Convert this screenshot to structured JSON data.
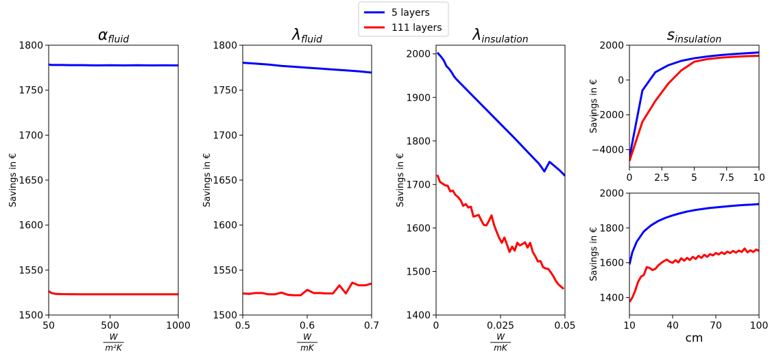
{
  "legend": {
    "placement": "top-center",
    "entries": [
      {
        "label": "5 layers",
        "color": "#0000ff"
      },
      {
        "label": "111 layers",
        "color": "#ff0000"
      }
    ]
  },
  "chart_data": [
    {
      "id": "alpha",
      "type": "line",
      "title_base": "α",
      "title_sub": "fluid",
      "ylabel": "Savings in €",
      "xlabel_num": "W",
      "xlabel_den": "m²K",
      "xlim": [
        50,
        1000
      ],
      "ylim": [
        1500,
        1800
      ],
      "xticks": [
        50,
        500,
        1000
      ],
      "yticks": [
        1500,
        1550,
        1600,
        1650,
        1700,
        1750,
        1800
      ],
      "series": [
        {
          "name": "5 layers",
          "color": "#0000ff",
          "x": [
            50,
            70,
            100,
            150,
            200,
            300,
            400,
            500,
            600,
            700,
            800,
            900,
            1000
          ],
          "y": [
            1778.5,
            1778,
            1778,
            1778,
            1777.8,
            1777.8,
            1777.5,
            1777.7,
            1777.5,
            1777.7,
            1777.5,
            1777.6,
            1777.5
          ]
        },
        {
          "name": "111 layers",
          "color": "#ff0000",
          "x": [
            50,
            70,
            100,
            150,
            200,
            300,
            400,
            500,
            600,
            700,
            800,
            900,
            1000
          ],
          "y": [
            1526.5,
            1524.5,
            1523.5,
            1523.2,
            1523.1,
            1523,
            1523,
            1523,
            1523,
            1523,
            1523,
            1523,
            1523
          ]
        }
      ]
    },
    {
      "id": "lambda_fluid",
      "type": "line",
      "title_base": "λ",
      "title_sub": "fluid",
      "ylabel": "Savings in €",
      "xlabel_num": "W",
      "xlabel_den": "mK",
      "xlim": [
        0.5,
        0.7
      ],
      "ylim": [
        1500,
        1800
      ],
      "xticks": [
        0.5,
        0.6,
        0.7
      ],
      "yticks": [
        1500,
        1550,
        1600,
        1650,
        1700,
        1750,
        1800
      ],
      "series": [
        {
          "name": "5 layers",
          "color": "#0000ff",
          "x": [
            0.5,
            0.52,
            0.54,
            0.56,
            0.58,
            0.6,
            0.62,
            0.64,
            0.66,
            0.68,
            0.7
          ],
          "y": [
            1780.5,
            1779.5,
            1778.5,
            1777,
            1776,
            1775,
            1774,
            1773,
            1772,
            1771,
            1769.5
          ]
        },
        {
          "name": "111 layers",
          "color": "#ff0000",
          "x": [
            0.5,
            0.51,
            0.52,
            0.53,
            0.54,
            0.55,
            0.56,
            0.57,
            0.58,
            0.59,
            0.6,
            0.61,
            0.62,
            0.63,
            0.64,
            0.65,
            0.66,
            0.67,
            0.68,
            0.69,
            0.7
          ],
          "y": [
            1524,
            1523.5,
            1524.5,
            1524.5,
            1523,
            1523,
            1525,
            1522.5,
            1522,
            1522,
            1528,
            1524.5,
            1524.5,
            1524,
            1524,
            1533,
            1524,
            1536,
            1533,
            1533,
            1535
          ]
        }
      ]
    },
    {
      "id": "lambda_insulation",
      "type": "line",
      "title_base": "λ",
      "title_sub": "insulation",
      "ylabel": "Savings in €",
      "xlabel_num": "W",
      "xlabel_den": "mK",
      "xlim": [
        0,
        0.05
      ],
      "ylim": [
        1400,
        2020
      ],
      "xticks": [
        0,
        0.025,
        0.05
      ],
      "yticks": [
        1400,
        1500,
        1600,
        1700,
        1800,
        1900,
        2000
      ],
      "series": [
        {
          "name": "5 layers",
          "color": "#0000ff",
          "x": [
            0.0005,
            0.002,
            0.003,
            0.004,
            0.005,
            0.006,
            0.007,
            0.008,
            0.01,
            0.015,
            0.02,
            0.025,
            0.03,
            0.035,
            0.04,
            0.042,
            0.044,
            0.046,
            0.048,
            0.05
          ],
          "y": [
            2003,
            1993,
            1985,
            1972,
            1966,
            1958,
            1948,
            1941,
            1929,
            1899,
            1869,
            1839,
            1809,
            1778,
            1747,
            1730,
            1752,
            1742,
            1732,
            1720
          ]
        },
        {
          "name": "111 layers",
          "color": "#ff0000",
          "x": [
            0.0005,
            0.0015,
            0.0025,
            0.0035,
            0.0045,
            0.0055,
            0.0065,
            0.0075,
            0.0085,
            0.0095,
            0.0105,
            0.0115,
            0.0125,
            0.0135,
            0.0145,
            0.0155,
            0.0165,
            0.0175,
            0.0185,
            0.0195,
            0.0205,
            0.0215,
            0.0225,
            0.0235,
            0.0245,
            0.0255,
            0.0265,
            0.0275,
            0.0285,
            0.0295,
            0.0305,
            0.0315,
            0.0325,
            0.0335,
            0.0345,
            0.0355,
            0.0365,
            0.0375,
            0.0385,
            0.0395,
            0.0405,
            0.0415,
            0.0425,
            0.0435,
            0.0445,
            0.0455,
            0.0465,
            0.0475,
            0.0485,
            0.0495
          ],
          "y": [
            1722,
            1706,
            1702,
            1698,
            1697,
            1684,
            1686,
            1676,
            1671,
            1664,
            1651,
            1655,
            1647,
            1649,
            1626,
            1628,
            1630,
            1618,
            1607,
            1606,
            1616,
            1629,
            1607,
            1591,
            1577,
            1566,
            1578,
            1562,
            1545,
            1557,
            1548,
            1566,
            1560,
            1563,
            1567,
            1555,
            1566,
            1545,
            1535,
            1523,
            1524,
            1510,
            1507,
            1506,
            1498,
            1489,
            1478,
            1470,
            1465,
            1460
          ]
        }
      ]
    },
    {
      "id": "s_insulation_top",
      "type": "line",
      "title_base": "s",
      "title_sub": "insulation",
      "ylabel": "Savings in €",
      "xlim": [
        0,
        10
      ],
      "ylim": [
        -5000,
        2000
      ],
      "xticks": [
        0,
        2.5,
        5,
        7.5,
        10
      ],
      "xtick_labels": [
        "0",
        "2.5",
        "5",
        "7.5",
        "10"
      ],
      "yticks": [
        -4000,
        -2000,
        0,
        2000
      ],
      "ytick_labels": [
        "−4000",
        "−2000",
        "0",
        "2000"
      ],
      "series": [
        {
          "name": "5 layers",
          "color": "#0000ff",
          "x": [
            0,
            1,
            2,
            3,
            4,
            5,
            6,
            7,
            8,
            9,
            10
          ],
          "y": [
            -4450,
            -600,
            450,
            850,
            1100,
            1250,
            1350,
            1430,
            1490,
            1540,
            1580
          ]
        },
        {
          "name": "111 layers",
          "color": "#ff0000",
          "x": [
            0,
            1,
            2,
            3,
            4,
            5,
            6,
            7,
            8,
            9,
            10
          ],
          "y": [
            -4650,
            -2400,
            -1200,
            -200,
            550,
            1050,
            1200,
            1280,
            1330,
            1370,
            1390
          ]
        }
      ]
    },
    {
      "id": "s_insulation_bottom",
      "type": "line",
      "ylabel": "Savings in €",
      "xlabel": "cm",
      "xlim": [
        10,
        100
      ],
      "ylim": [
        1300,
        2000
      ],
      "xticks": [
        10,
        40,
        70,
        100
      ],
      "yticks": [
        1400,
        1600,
        1800,
        2000
      ],
      "series": [
        {
          "name": "5 layers",
          "color": "#0000ff",
          "x": [
            10,
            12,
            15,
            20,
            25,
            30,
            35,
            40,
            45,
            50,
            55,
            60,
            65,
            70,
            75,
            80,
            85,
            90,
            95,
            100
          ],
          "y": [
            1590,
            1660,
            1720,
            1780,
            1815,
            1840,
            1858,
            1872,
            1884,
            1894,
            1902,
            1908,
            1914,
            1918,
            1922,
            1926,
            1929,
            1932,
            1934,
            1937
          ]
        },
        {
          "name": "111 layers",
          "color": "#ff0000",
          "x": [
            10,
            12,
            14,
            16,
            18,
            20,
            22,
            24,
            26,
            28,
            30,
            32,
            34,
            36,
            38,
            40,
            42,
            44,
            46,
            48,
            50,
            52,
            54,
            56,
            58,
            60,
            62,
            64,
            66,
            68,
            70,
            72,
            74,
            76,
            78,
            80,
            82,
            84,
            86,
            88,
            90,
            92,
            94,
            96,
            98,
            100
          ],
          "y": [
            1375,
            1400,
            1440,
            1490,
            1520,
            1530,
            1575,
            1570,
            1558,
            1565,
            1585,
            1598,
            1610,
            1618,
            1606,
            1600,
            1615,
            1602,
            1626,
            1612,
            1628,
            1616,
            1634,
            1622,
            1640,
            1628,
            1646,
            1634,
            1650,
            1642,
            1656,
            1648,
            1660,
            1650,
            1664,
            1656,
            1668,
            1658,
            1670,
            1662,
            1682,
            1660,
            1672,
            1662,
            1676,
            1668
          ]
        }
      ]
    }
  ]
}
